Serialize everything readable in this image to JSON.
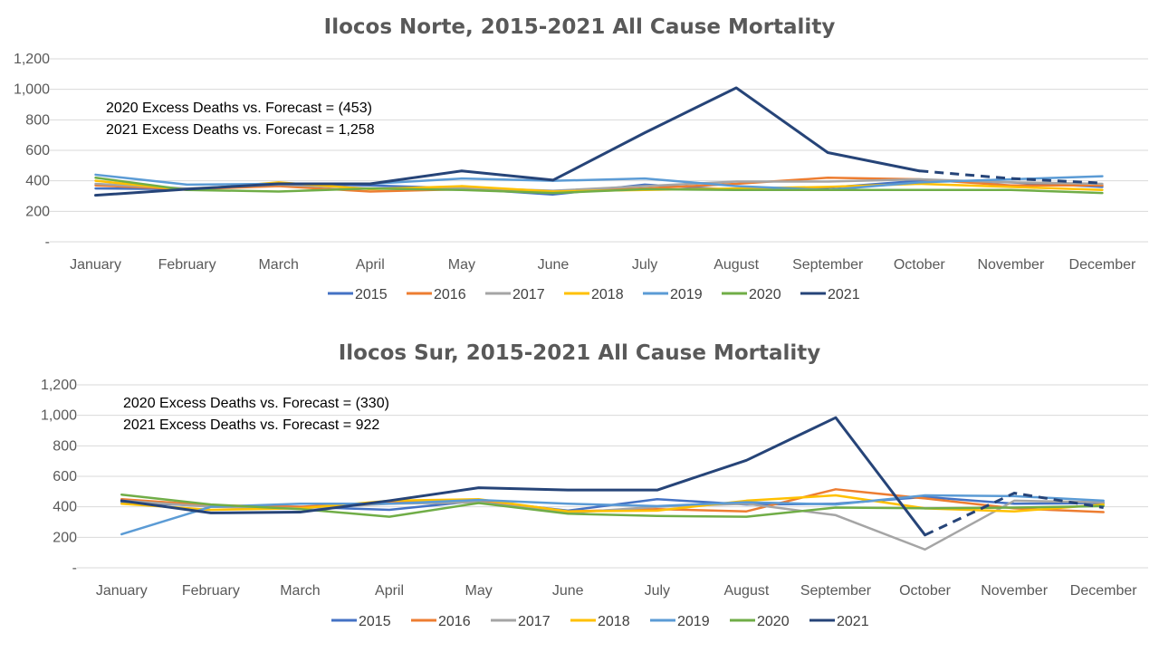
{
  "chart_data": [
    {
      "type": "line",
      "title": "Ilocos Norte, 2015-2021 All Cause Mortality",
      "xlabel": "",
      "ylabel": "",
      "ylim": [
        0,
        1200
      ],
      "yticks": [
        0,
        200,
        400,
        600,
        800,
        1000,
        1200
      ],
      "ytick_labels": [
        "-",
        "200",
        "400",
        "600",
        "800",
        "1,000",
        "1,200"
      ],
      "grid": true,
      "legend": "bottom",
      "categories": [
        "January",
        "February",
        "March",
        "April",
        "May",
        "June",
        "July",
        "August",
        "September",
        "October",
        "November",
        "December"
      ],
      "annotations": [
        "2020 Excess Deaths vs. Forecast = (453)",
        "2021 Excess Deaths vs. Forecast = 1,258"
      ],
      "series": [
        {
          "name": "2015",
          "color": "#4472c4",
          "values": [
            350,
            345,
            380,
            370,
            350,
            310,
            375,
            340,
            355,
            400,
            390,
            360
          ]
        },
        {
          "name": "2016",
          "color": "#ed7d31",
          "values": [
            370,
            345,
            365,
            330,
            345,
            330,
            350,
            380,
            420,
            410,
            370,
            370
          ]
        },
        {
          "name": "2017",
          "color": "#a5a5a5",
          "values": [
            380,
            350,
            375,
            350,
            355,
            335,
            365,
            395,
            395,
            410,
            390,
            380
          ]
        },
        {
          "name": "2018",
          "color": "#ffc000",
          "values": [
            400,
            340,
            390,
            345,
            365,
            330,
            340,
            350,
            360,
            380,
            360,
            340
          ]
        },
        {
          "name": "2019",
          "color": "#5b9bd5",
          "values": [
            440,
            375,
            380,
            380,
            415,
            400,
            415,
            365,
            340,
            390,
            410,
            430
          ]
        },
        {
          "name": "2020",
          "color": "#70ad47",
          "values": [
            420,
            340,
            330,
            350,
            340,
            320,
            345,
            340,
            340,
            340,
            340,
            320
          ]
        },
        {
          "name": "2021",
          "color": "#264478",
          "values": [
            305,
            345,
            380,
            380,
            465,
            405,
            715,
            1010,
            585,
            465,
            415,
            385
          ],
          "dashed_from": 9
        }
      ]
    },
    {
      "type": "line",
      "title": "Ilocos Sur, 2015-2021 All Cause Mortality",
      "xlabel": "",
      "ylabel": "",
      "ylim": [
        0,
        1200
      ],
      "yticks": [
        0,
        200,
        400,
        600,
        800,
        1000,
        1200
      ],
      "ytick_labels": [
        "-",
        "200",
        "400",
        "600",
        "800",
        "1,000",
        "1,200"
      ],
      "grid": true,
      "legend": "bottom",
      "categories": [
        "January",
        "February",
        "March",
        "April",
        "May",
        "June",
        "July",
        "August",
        "September",
        "October",
        "November",
        "December"
      ],
      "annotations": [
        "2020 Excess Deaths vs. Forecast = (330)",
        "2021 Excess Deaths vs. Forecast = 922"
      ],
      "series": [
        {
          "name": "2015",
          "color": "#4472c4",
          "values": [
            430,
            405,
            400,
            380,
            440,
            375,
            450,
            415,
            420,
            465,
            420,
            425
          ]
        },
        {
          "name": "2016",
          "color": "#ed7d31",
          "values": [
            450,
            410,
            400,
            430,
            440,
            370,
            385,
            370,
            515,
            455,
            390,
            365
          ]
        },
        {
          "name": "2017",
          "color": "#a5a5a5",
          "values": [
            440,
            400,
            390,
            420,
            430,
            360,
            400,
            420,
            345,
            120,
            440,
            430
          ]
        },
        {
          "name": "2018",
          "color": "#ffc000",
          "values": [
            420,
            380,
            390,
            440,
            450,
            370,
            375,
            440,
            475,
            390,
            370,
            415
          ]
        },
        {
          "name": "2019",
          "color": "#5b9bd5",
          "values": [
            220,
            400,
            420,
            420,
            445,
            420,
            405,
            430,
            415,
            475,
            470,
            440
          ]
        },
        {
          "name": "2020",
          "color": "#70ad47",
          "values": [
            480,
            415,
            385,
            335,
            425,
            355,
            340,
            335,
            395,
            390,
            395,
            405
          ]
        },
        {
          "name": "2021",
          "color": "#264478",
          "values": [
            440,
            360,
            365,
            440,
            525,
            510,
            510,
            705,
            985,
            215,
            490,
            395
          ],
          "dashed_from": 9
        }
      ]
    }
  ]
}
